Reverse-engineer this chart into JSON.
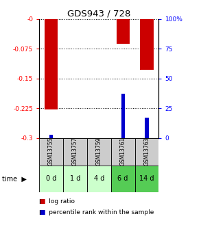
{
  "title": "GDS943 / 728",
  "samples": [
    "GSM13755",
    "GSM13757",
    "GSM13759",
    "GSM13761",
    "GSM13763"
  ],
  "time_labels": [
    "0 d",
    "1 d",
    "4 d",
    "6 d",
    "14 d"
  ],
  "log_ratio": [
    -0.228,
    0.0,
    0.0,
    -0.062,
    -0.128
  ],
  "percentile_rank": [
    2.5,
    0.0,
    0.0,
    37.0,
    17.0
  ],
  "ylim_left": [
    -0.3,
    0.0
  ],
  "ylim_right": [
    0,
    100
  ],
  "yticks_left": [
    0.0,
    -0.075,
    -0.15,
    -0.225,
    -0.3
  ],
  "ytick_labels_left": [
    "-0",
    "-0.075",
    "-0.15",
    "-0.225",
    "-0.3"
  ],
  "yticks_right": [
    100,
    75,
    50,
    25,
    0
  ],
  "ytick_labels_right": [
    "100%",
    "75",
    "50",
    "25",
    "0"
  ],
  "bar_color_red": "#cc0000",
  "bar_color_blue": "#0000cc",
  "time_bg_colors": [
    "#ccffcc",
    "#ccffcc",
    "#ccffcc",
    "#55cc55",
    "#55cc55"
  ],
  "sample_bg_color": "#cccccc",
  "bar_width": 0.55,
  "blue_bar_width": 0.15,
  "legend_red": "log ratio",
  "legend_blue": "percentile rank within the sample",
  "time_label": "time"
}
